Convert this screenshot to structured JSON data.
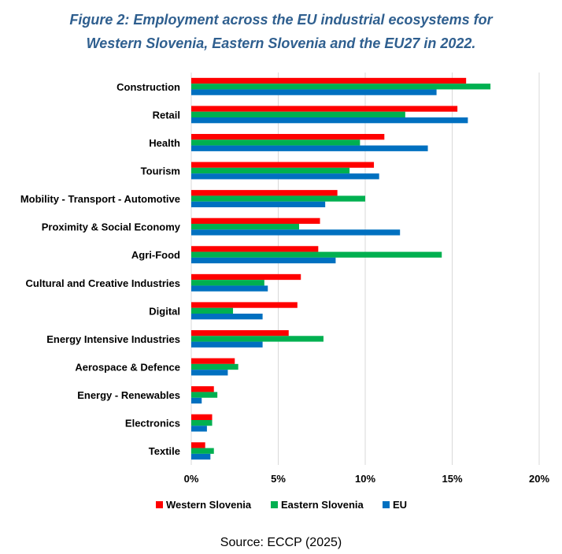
{
  "chart_data": {
    "type": "bar",
    "orientation": "horizontal",
    "title": "Figure 2: Employment across the EU industrial ecosystems for",
    "title_line2": "Western Slovenia, Eastern Slovenia and the EU27 in 2022.",
    "source": "Source: ECCP (2025)",
    "categories": [
      "Construction",
      "Retail",
      "Health",
      "Tourism",
      "Mobility - Transport - Automotive",
      "Proximity & Social Economy",
      "Agri-Food",
      "Cultural and Creative Industries",
      "Digital",
      "Energy Intensive Industries",
      "Aerospace & Defence",
      "Energy - Renewables",
      "Electronics",
      "Textile"
    ],
    "series": [
      {
        "name": "Western Slovenia",
        "color": "#ff0000",
        "values": [
          15.8,
          15.3,
          11.1,
          10.5,
          8.4,
          7.4,
          7.3,
          6.3,
          6.1,
          5.6,
          2.5,
          1.3,
          1.2,
          0.8
        ]
      },
      {
        "name": "Eastern Slovenia",
        "color": "#00b050",
        "values": [
          17.2,
          12.3,
          9.7,
          9.1,
          10.0,
          6.2,
          14.4,
          4.2,
          2.4,
          7.6,
          2.7,
          1.5,
          1.2,
          1.3
        ]
      },
      {
        "name": "EU",
        "color": "#0070c0",
        "values": [
          14.1,
          15.9,
          13.6,
          10.8,
          7.7,
          12.0,
          8.3,
          4.4,
          4.1,
          4.1,
          2.1,
          0.6,
          0.9,
          1.1
        ]
      }
    ],
    "xlim": [
      0,
      20
    ],
    "xticks": [
      "0%",
      "5%",
      "10%",
      "15%",
      "20%"
    ],
    "grid": true,
    "legend": "bottom"
  }
}
